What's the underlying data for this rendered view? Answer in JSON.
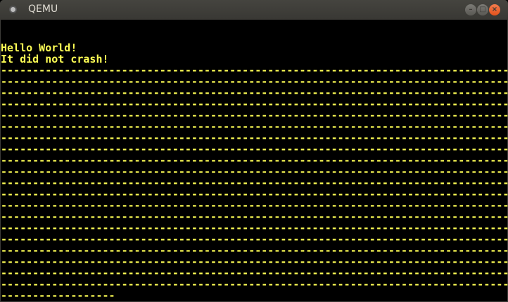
{
  "window": {
    "title": "QEMU",
    "buttons": {
      "minimize": "–",
      "maximize": "□",
      "close": "×"
    }
  },
  "screen": {
    "text_color": "#ffff55",
    "background": "#000000",
    "lines": [
      "",
      "",
      "Hello World!",
      "It did not crash!",
      "--------------------------------------------------------------------------------",
      "--------------------------------------------------------------------------------",
      "--------------------------------------------------------------------------------",
      "--------------------------------------------------------------------------------",
      "--------------------------------------------------------------------------------",
      "--------------------------------------------------------------------------------",
      "--------------------------------------------------------------------------------",
      "--------------------------------------------------------------------------------",
      "--------------------------------------------------------------------------------",
      "--------------------------------------------------------------------------------",
      "--------------------------------------------------------------------------------",
      "--------------------------------------------------------------------------------",
      "--------------------------------------------------------------------------------",
      "--------------------------------------------------------------------------------",
      "--------------------------------------------------------------------------------",
      "--------------------------------------------------------------------------------",
      "--------------------------------------------------------------------------------",
      "--------------------------------------------------------------------------------",
      "--------------------------------------------------------------------------------",
      "--------------------------------------------------------------------------------",
      "------------------"
    ]
  }
}
